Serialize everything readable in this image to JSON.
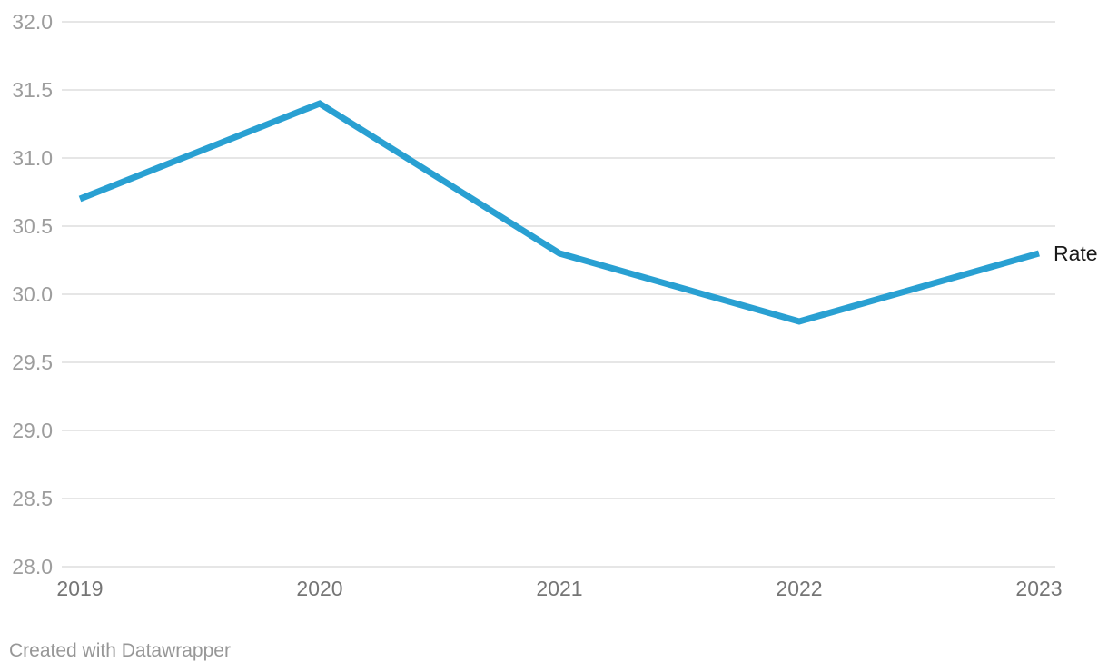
{
  "chart_data": {
    "type": "line",
    "categories": [
      "2019",
      "2020",
      "2021",
      "2022",
      "2023"
    ],
    "series": [
      {
        "name": "Rate",
        "values": [
          30.7,
          31.4,
          30.3,
          29.8,
          30.3
        ],
        "color": "#29A0D2"
      }
    ],
    "title": "",
    "xlabel": "",
    "ylabel": "",
    "ylim": [
      28.0,
      32.0
    ],
    "y_tick_labels": [
      "32.0",
      "31.5",
      "31.0",
      "30.5",
      "30.0",
      "29.5",
      "29.0",
      "28.5",
      "28.0"
    ],
    "y_tick_values": [
      32.0,
      31.5,
      31.0,
      30.5,
      30.0,
      29.5,
      29.0,
      28.5,
      28.0
    ],
    "grid": "horizontal",
    "legend_position": "end-of-line",
    "colors": {
      "line": "#29A0D2",
      "gridline": "#e6e6e6",
      "y_tick_label": "#9d9d9d",
      "x_tick_label": "#757575",
      "series_label": "#1a1a1a",
      "attribution": "#979797"
    }
  },
  "footer": {
    "attribution": "Created with Datawrapper"
  }
}
